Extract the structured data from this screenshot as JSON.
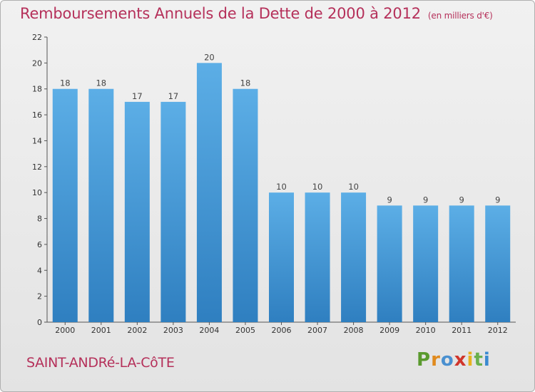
{
  "header": {
    "title": "Remboursements Annuels de la Dette de 2000 à 2012",
    "unit": "(en milliers d'€)"
  },
  "footer": {
    "commune": "SAINT-ANDRé-LA-CôTE",
    "logo_letters": [
      "P",
      "r",
      "o",
      "x",
      "i",
      "t",
      "i"
    ]
  },
  "colors": {
    "title": "#b5305a",
    "bar_top": "#5caee6",
    "bar_bottom": "#2f7fc0",
    "logo": [
      "#5a9a2e",
      "#e08a1e",
      "#4a90d0",
      "#d0352b",
      "#e8b21e",
      "#6ab04c",
      "#3a8ad0"
    ]
  },
  "chart_data": {
    "type": "bar",
    "title": "Remboursements Annuels de la Dette de 2000 à 2012",
    "xlabel": "",
    "ylabel": "",
    "categories": [
      "2000",
      "2001",
      "2002",
      "2003",
      "2004",
      "2005",
      "2006",
      "2007",
      "2008",
      "2009",
      "2010",
      "2011",
      "2012"
    ],
    "values": [
      18,
      18,
      17,
      17,
      20,
      18,
      10,
      10,
      10,
      9,
      9,
      9,
      9
    ],
    "value_labels": [
      "18",
      "18",
      "17",
      "17",
      "20",
      "18",
      "10",
      "10",
      "10",
      "9",
      "9",
      "9",
      "9"
    ],
    "ylim": [
      0,
      22
    ],
    "yticks": [
      0,
      2,
      4,
      6,
      8,
      10,
      12,
      14,
      16,
      18,
      20,
      22
    ],
    "ytick_labels": [
      "0",
      "2",
      "4",
      "6",
      "8",
      "10",
      "12",
      "14",
      "16",
      "18",
      "20",
      "22"
    ],
    "grid": false,
    "legend": "none"
  }
}
